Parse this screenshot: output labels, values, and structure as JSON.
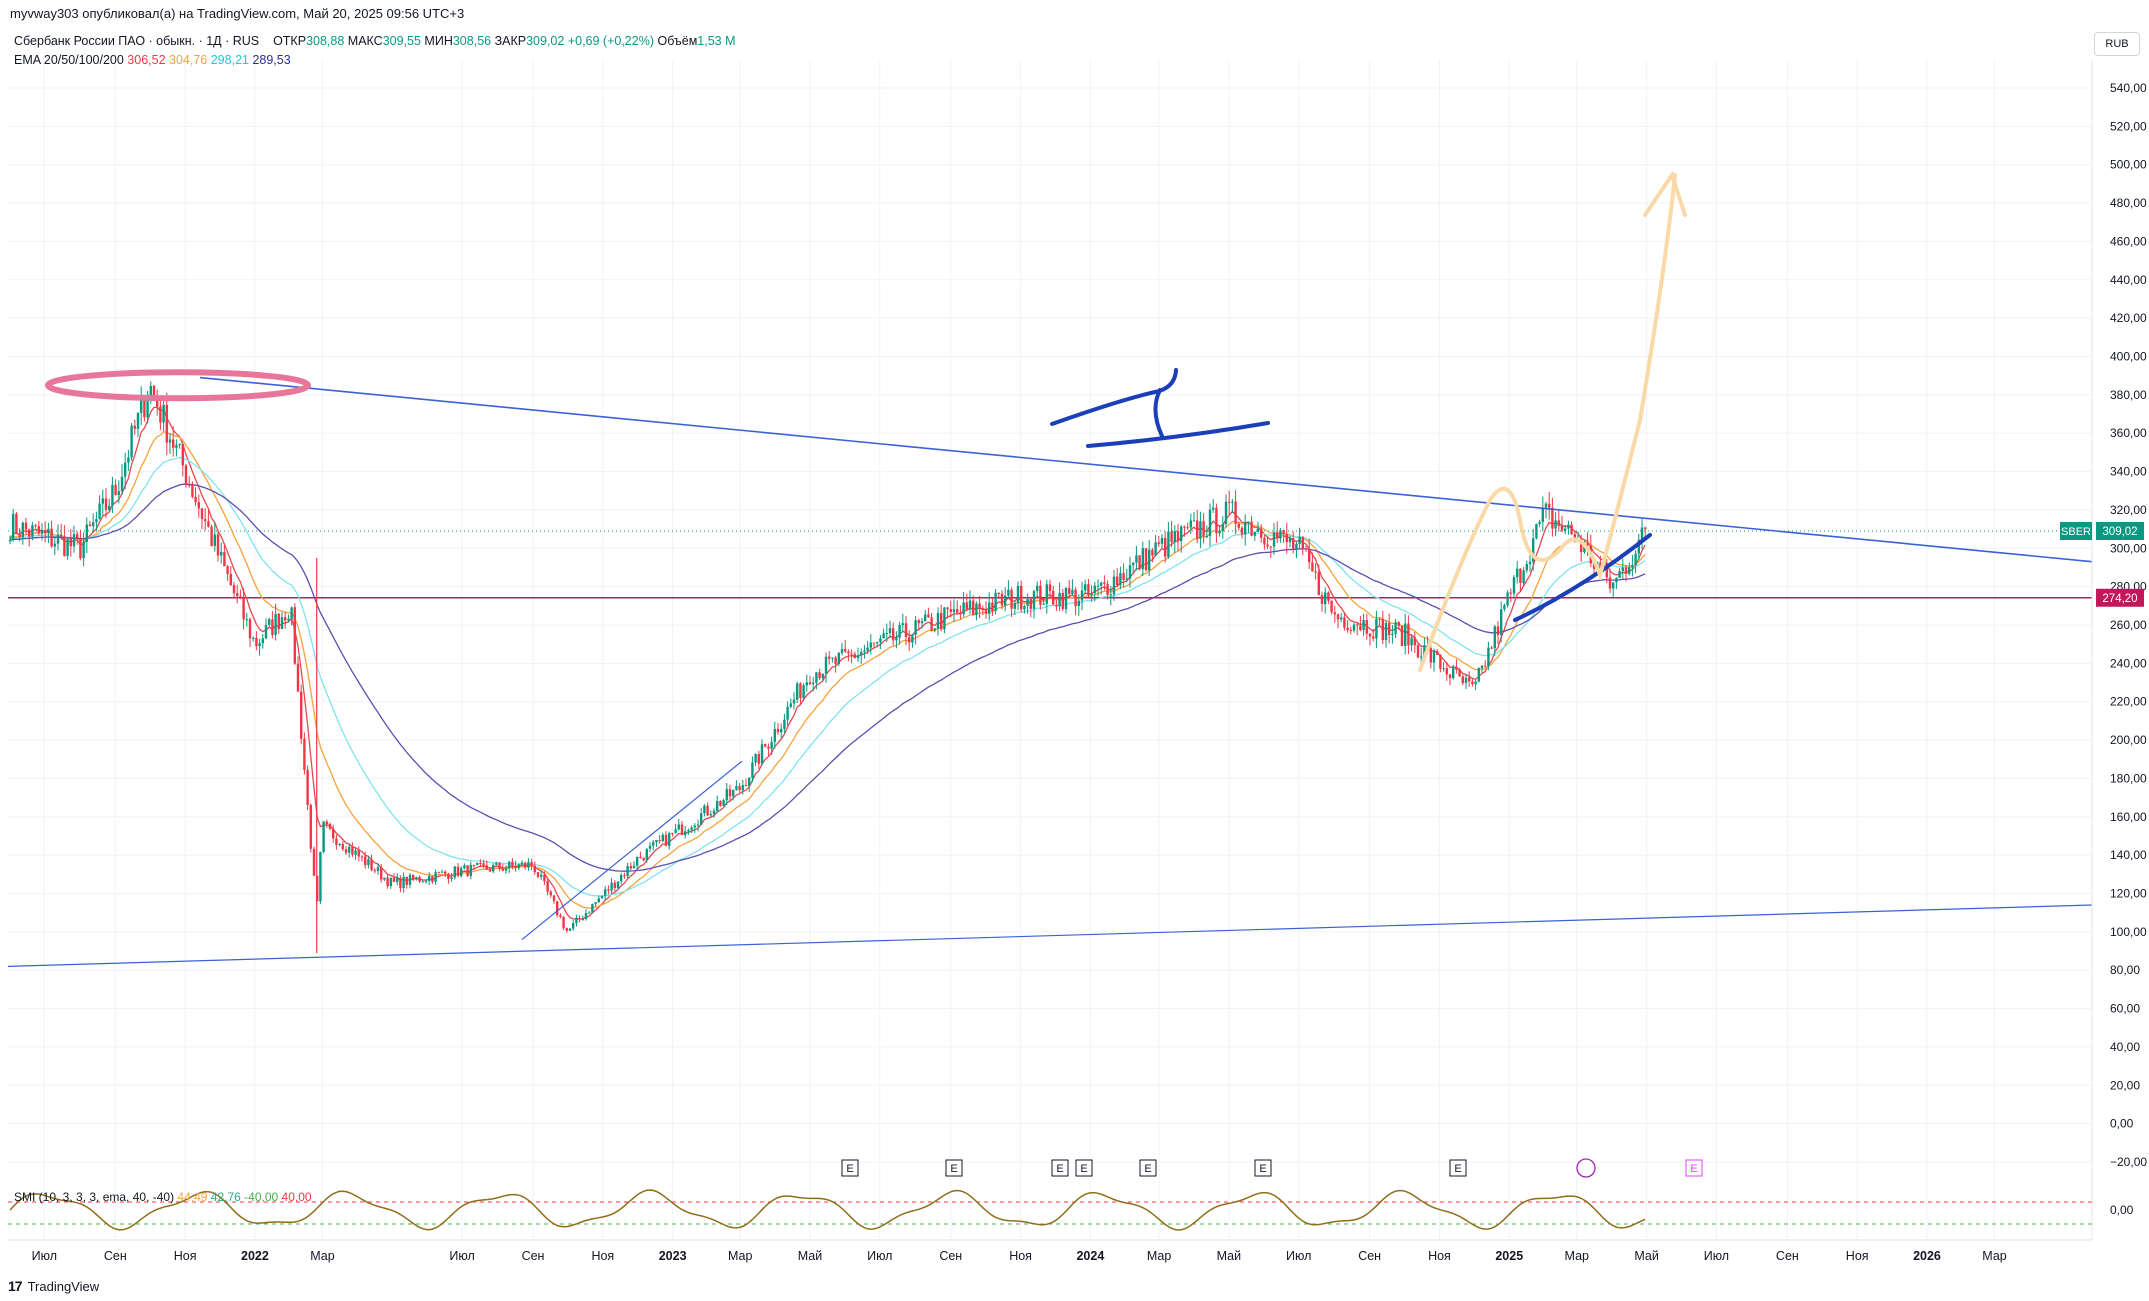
{
  "header": {
    "published": "myvway303 опубликовал(а) на TradingView.com, Май 20, 2025 09:56 UTC+3"
  },
  "legend": {
    "symbol": "Сбербанк России ПАО · обыкн. · 1Д · RUS",
    "open_label": "ОТКР",
    "open": "308,88",
    "high_label": "МАКС",
    "high": "309,55",
    "low_label": "МИН",
    "low": "308,56",
    "close_label": "ЗАКР",
    "close": "309,02",
    "change": "+0,69 (+0,22%)",
    "volume_label": "Объём",
    "volume": "1,53 M",
    "ema_label": "EMA 20/50/100/200",
    "ema20": "306,52",
    "ema50": "304,76",
    "ema100": "298,21",
    "ema200": "289,53"
  },
  "currency": "RUB",
  "smi": {
    "label": "SMI (10, 3, 3, 3, ema, 40, -40)",
    "v1": "44,49",
    "v2": "42,76",
    "v3": "-40,00",
    "v4": "40,00"
  },
  "footer": {
    "logo": "17",
    "brand": "TradingView"
  },
  "colors": {
    "ema20": "#e5484d",
    "ema50": "#f7a23b",
    "ema100": "#7fe3ee",
    "ema200": "#5b4fb0",
    "trendline": "#3a62d6",
    "support": "#c2185b",
    "up": "#089981",
    "down": "#f23645"
  },
  "chart_data": {
    "type": "candlestick",
    "ylim": [
      -30,
      560
    ],
    "y_ticks": [
      "540,00",
      "520,00",
      "500,00",
      "480,00",
      "460,00",
      "440,00",
      "420,00",
      "400,00",
      "380,00",
      "360,00",
      "340,00",
      "320,00",
      "300,00",
      "280,00",
      "260,00",
      "240,00",
      "220,00",
      "200,00",
      "180,00",
      "160,00",
      "140,00",
      "120,00",
      "100,00",
      "80,00",
      "60,00",
      "40,00",
      "20,00",
      "0,00",
      "−20,00"
    ],
    "x_ticks": [
      "Июл",
      "Сен",
      "Ноя",
      "2022",
      "Мар",
      "Июл",
      "Сен",
      "Ноя",
      "2023",
      "Мар",
      "Май",
      "Июл",
      "Сен",
      "Ноя",
      "2024",
      "Мар",
      "Май",
      "Июл",
      "Сен",
      "Ноя",
      "2025",
      "Мар",
      "Май",
      "Июл",
      "Сен",
      "Ноя",
      "2026",
      "Мар"
    ],
    "price_tags": [
      {
        "symbol": "SBER",
        "value": "309,02",
        "price": 309.02
      },
      {
        "value": "274,20",
        "price": 274.2
      }
    ],
    "smi_ticks": [
      "0,00"
    ],
    "earnings_markers": [
      "E",
      "E",
      "E",
      "E",
      "E",
      "E",
      "E",
      "E"
    ],
    "price_path": [
      {
        "date": "2021-06",
        "price": 312
      },
      {
        "date": "2021-08",
        "price": 300
      },
      {
        "date": "2021-09",
        "price": 330
      },
      {
        "date": "2021-10",
        "price": 385
      },
      {
        "date": "2021-11",
        "price": 340
      },
      {
        "date": "2021-12",
        "price": 295
      },
      {
        "date": "2022-01",
        "price": 250
      },
      {
        "date": "2022-02",
        "price": 270
      },
      {
        "date": "2022-02-24",
        "price": 110
      },
      {
        "date": "2022-03",
        "price": 155
      },
      {
        "date": "2022-05",
        "price": 125
      },
      {
        "date": "2022-07",
        "price": 132
      },
      {
        "date": "2022-09",
        "price": 135
      },
      {
        "date": "2022-10",
        "price": 100
      },
      {
        "date": "2022-12",
        "price": 138
      },
      {
        "date": "2023-03",
        "price": 175
      },
      {
        "date": "2023-05",
        "price": 235
      },
      {
        "date": "2023-07",
        "price": 250
      },
      {
        "date": "2023-09",
        "price": 265
      },
      {
        "date": "2023-11",
        "price": 275
      },
      {
        "date": "2024-01",
        "price": 275
      },
      {
        "date": "2024-03",
        "price": 300
      },
      {
        "date": "2024-05",
        "price": 318
      },
      {
        "date": "2024-07",
        "price": 300
      },
      {
        "date": "2024-08",
        "price": 265
      },
      {
        "date": "2024-10",
        "price": 255
      },
      {
        "date": "2024-12",
        "price": 225
      },
      {
        "date": "2025-01",
        "price": 275
      },
      {
        "date": "2025-02",
        "price": 318
      },
      {
        "date": "2025-03",
        "price": 305
      },
      {
        "date": "2025-04",
        "price": 280
      },
      {
        "date": "2025-05",
        "price": 309
      }
    ]
  }
}
